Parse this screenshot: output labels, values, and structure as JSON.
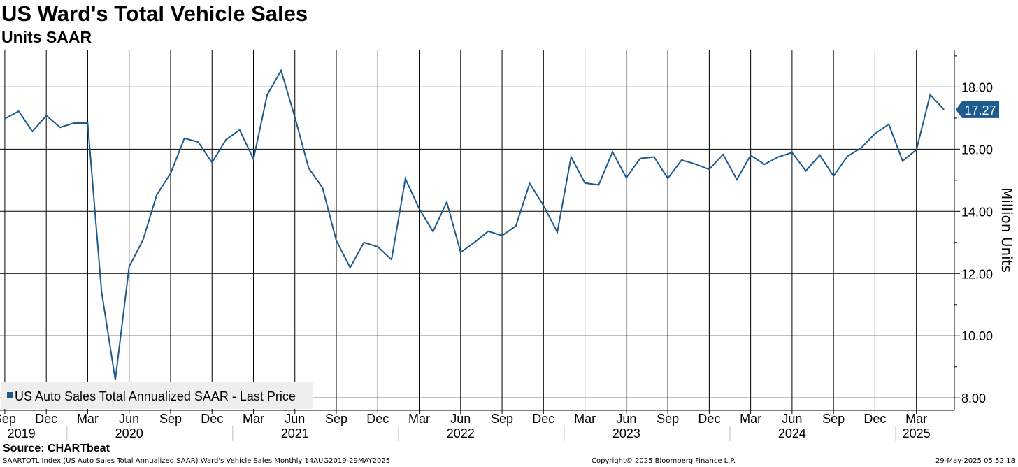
{
  "header": {
    "title": "US Ward's Total Vehicle Sales",
    "subtitle": "Units SAAR"
  },
  "footer": {
    "source": "Source: CHARTbeat",
    "description": "SAARTOTL Index (US Auto Sales Total Annualized SAAR) Ward's Vehicle Sales  Monthly 14AUG2019-29MAY2025",
    "copyright": "Copyright© 2025 Bloomberg Finance L.P.",
    "timestamp": "29-May-2025 05:52:18"
  },
  "colors": {
    "line": "#1d5a8e",
    "grid": "#000000",
    "legend_bg": "#eeeeee",
    "label_bg": "#1d5a8e"
  },
  "chart_data": {
    "type": "line",
    "title": "US Ward's Total Vehicle Sales",
    "subtitle": "Units SAAR",
    "ylabel": "Million Units",
    "xlabel": "",
    "ylim": [
      7.6,
      19.2
    ],
    "yticks": [
      8,
      10,
      12,
      14,
      16,
      18
    ],
    "ytick_labels": [
      "8.00",
      "10.00",
      "12.00",
      "14.00",
      "16.00",
      "18.00"
    ],
    "grid": true,
    "legend": {
      "label": "US Auto Sales Total Annualized SAAR - Last Price",
      "position": "bottom-left"
    },
    "last_value_label": "17.27",
    "x_start_offset": -0.35,
    "x_end_offset": 0.75,
    "x_ticks": [
      {
        "i": 0,
        "label": "Sep"
      },
      {
        "i": 3,
        "label": "Dec"
      },
      {
        "i": 6,
        "label": "Mar"
      },
      {
        "i": 9,
        "label": "Jun"
      },
      {
        "i": 12,
        "label": "Sep"
      },
      {
        "i": 15,
        "label": "Dec"
      },
      {
        "i": 18,
        "label": "Mar"
      },
      {
        "i": 21,
        "label": "Jun"
      },
      {
        "i": 24,
        "label": "Sep"
      },
      {
        "i": 27,
        "label": "Dec"
      },
      {
        "i": 30,
        "label": "Mar"
      },
      {
        "i": 33,
        "label": "Jun"
      },
      {
        "i": 36,
        "label": "Sep"
      },
      {
        "i": 39,
        "label": "Dec"
      },
      {
        "i": 42,
        "label": "Mar"
      },
      {
        "i": 45,
        "label": "Jun"
      },
      {
        "i": 48,
        "label": "Sep"
      },
      {
        "i": 51,
        "label": "Dec"
      },
      {
        "i": 54,
        "label": "Mar"
      },
      {
        "i": 57,
        "label": "Jun"
      },
      {
        "i": 60,
        "label": "Sep"
      },
      {
        "i": 63,
        "label": "Dec"
      },
      {
        "i": 66,
        "label": "Mar"
      }
    ],
    "year_labels": [
      {
        "i": 1.2,
        "label": "2019"
      },
      {
        "i": 9,
        "label": "2020"
      },
      {
        "i": 21,
        "label": "2021"
      },
      {
        "i": 33,
        "label": "2022"
      },
      {
        "i": 45,
        "label": "2023"
      },
      {
        "i": 57,
        "label": "2024"
      },
      {
        "i": 66,
        "label": "2025"
      }
    ],
    "year_dividers": [
      4.5,
      16.5,
      28.5,
      40.5,
      52.5,
      64.5
    ],
    "x": [
      "Aug 2019",
      "Sep 2019",
      "Oct 2019",
      "Nov 2019",
      "Dec 2019",
      "Jan 2020",
      "Feb 2020",
      "Mar 2020",
      "Apr 2020",
      "May 2020",
      "Jun 2020",
      "Jul 2020",
      "Aug 2020",
      "Sep 2020",
      "Oct 2020",
      "Nov 2020",
      "Dec 2020",
      "Jan 2021",
      "Feb 2021",
      "Mar 2021",
      "Apr 2021",
      "May 2021",
      "Jun 2021",
      "Jul 2021",
      "Aug 2021",
      "Sep 2021",
      "Oct 2021",
      "Nov 2021",
      "Dec 2021",
      "Jan 2022",
      "Feb 2022",
      "Mar 2022",
      "Apr 2022",
      "May 2022",
      "Jun 2022",
      "Jul 2022",
      "Aug 2022",
      "Sep 2022",
      "Oct 2022",
      "Nov 2022",
      "Dec 2022",
      "Jan 2023",
      "Feb 2023",
      "Mar 2023",
      "Apr 2023",
      "May 2023",
      "Jun 2023",
      "Jul 2023",
      "Aug 2023",
      "Sep 2023",
      "Oct 2023",
      "Nov 2023",
      "Dec 2023",
      "Jan 2024",
      "Feb 2024",
      "Mar 2024",
      "Apr 2024",
      "May 2024",
      "Jun 2024",
      "Jul 2024",
      "Aug 2024",
      "Sep 2024",
      "Oct 2024",
      "Nov 2024",
      "Dec 2024",
      "Jan 2025",
      "Feb 2025",
      "Mar 2025",
      "Apr 2025"
    ],
    "series": [
      {
        "name": "US Auto Sales Total Annualized SAAR - Last Price",
        "values": [
          16.98,
          17.22,
          16.57,
          17.08,
          16.7,
          16.84,
          16.84,
          11.43,
          8.58,
          12.22,
          13.08,
          14.53,
          15.22,
          16.35,
          16.23,
          15.57,
          16.3,
          16.62,
          15.68,
          17.75,
          18.53,
          17.03,
          15.39,
          14.76,
          13.06,
          12.19,
          13.0,
          12.86,
          12.45,
          15.05,
          14.09,
          13.35,
          14.3,
          12.68,
          13.0,
          13.36,
          13.22,
          13.53,
          14.9,
          14.19,
          13.33,
          15.75,
          14.91,
          14.85,
          15.91,
          15.08,
          15.7,
          15.75,
          15.06,
          15.65,
          15.52,
          15.35,
          15.83,
          15.02,
          15.8,
          15.51,
          15.75,
          15.89,
          15.3,
          15.81,
          15.13,
          15.77,
          16.04,
          16.5,
          16.8,
          15.62,
          15.98,
          17.75,
          17.27
        ]
      }
    ]
  }
}
